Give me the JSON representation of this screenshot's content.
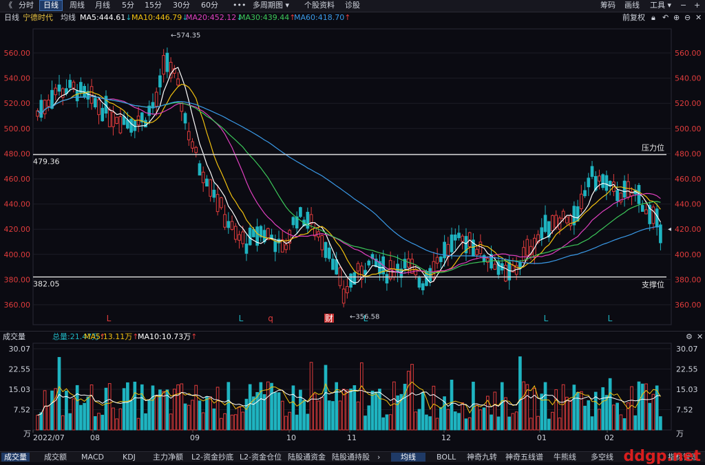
{
  "toolbar": {
    "back": "《",
    "periods": [
      "分时",
      "日线",
      "周线",
      "月线",
      "5分",
      "15分",
      "30分",
      "60分"
    ],
    "active_period": "日线",
    "more": "•••",
    "multi": "多周期图",
    "info": "个股资料",
    "diag": "诊股",
    "right": [
      "筹码",
      "画线",
      "工具"
    ]
  },
  "info": {
    "period": "日线",
    "name": "宁德时代",
    "ma_label": "均线",
    "ma5": "MA5:444.61",
    "ma10": "MA10:446.79",
    "ma20": "MA20:452.12",
    "ma30": "MA30:439.44",
    "ma60": "MA60:418.70",
    "restore": "前复权"
  },
  "chart_data": {
    "type": "candlestick",
    "yticks": [
      "560.00",
      "540.00",
      "520.00",
      "500.00",
      "480.00",
      "460.00",
      "440.00",
      "420.00",
      "400.00",
      "380.00",
      "360.00"
    ],
    "resistance": {
      "value": "479.36",
      "label": "压力位"
    },
    "support": {
      "value": "382.05",
      "label": "支撑位"
    },
    "high": "574.35",
    "low": "356.58",
    "markers": [
      "L",
      "L",
      "q",
      "财",
      "L",
      "L",
      "L"
    ]
  },
  "volume": {
    "title": "成交量",
    "total": "总量:21.47万",
    "ma5": "MA5:13.11万",
    "ma10": "MA10:10.73万",
    "yticks": [
      "30.07",
      "22.55",
      "15.03",
      "7.52"
    ],
    "unit": "万",
    "xticks": [
      "2022/07",
      "08",
      "09",
      "10",
      "11",
      "12",
      "01",
      "02"
    ]
  },
  "bottom_tabs": [
    "成交量",
    "成交额",
    "MACD",
    "KDJ",
    "主力净额",
    "L2-资金抄底",
    "L2-资金仓位",
    "陆股通资金",
    "陆股通持股",
    "均线",
    "BOLL",
    "神奇九转",
    "神奇五线谱",
    "牛熊线",
    "多空线",
    "指标管理"
  ],
  "active_bottom_left": "成交量",
  "active_bottom_right": "均线",
  "watermark": "ddgp.net",
  "colors": {
    "up": "#e03c3c",
    "down": "#1fb4c1",
    "ma5": "#ffffff",
    "ma10": "#f2c10f",
    "ma20": "#e040c0",
    "ma30": "#3cc85a",
    "ma60": "#3a9ae8"
  }
}
